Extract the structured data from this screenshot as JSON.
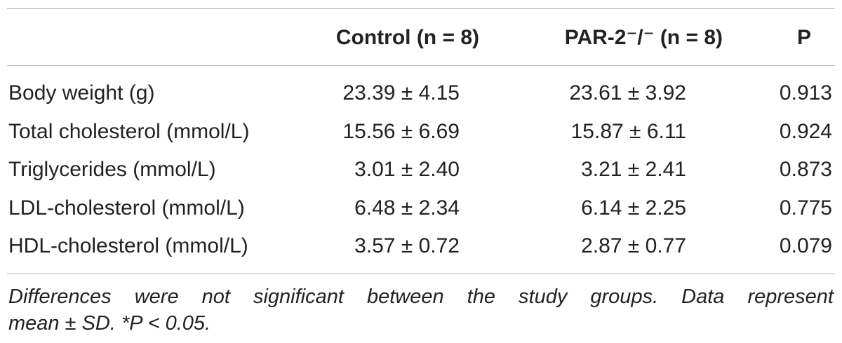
{
  "table": {
    "headers": {
      "col0": "",
      "control": "Control (n = 8)",
      "par2": "PAR-2⁻/⁻ (n = 8)",
      "p": "P"
    },
    "rows": [
      {
        "label": "Body weight (g)",
        "control": "23.39 ± 4.15",
        "par2": "23.61 ± 3.92",
        "p": "0.913"
      },
      {
        "label": "Total cholesterol (mmol/L)",
        "control": "15.56 ± 6.69",
        "par2": "15.87 ± 6.11",
        "p": "0.924"
      },
      {
        "label": "Triglycerides (mmol/L)",
        "control": "3.01 ± 2.40",
        "par2": "3.21 ± 2.41",
        "p": "0.873"
      },
      {
        "label": "LDL-cholesterol (mmol/L)",
        "control": "6.48 ± 2.34",
        "par2": "6.14 ± 2.25",
        "p": "0.775"
      },
      {
        "label": "HDL-cholesterol (mmol/L)",
        "control": "3.57 ± 0.72",
        "par2": "2.87 ± 0.77",
        "p": "0.079"
      }
    ]
  },
  "footnote": {
    "line1": "Differences were not significant between the study groups. Data represent",
    "line2": "mean ± SD. *P < 0.05."
  }
}
